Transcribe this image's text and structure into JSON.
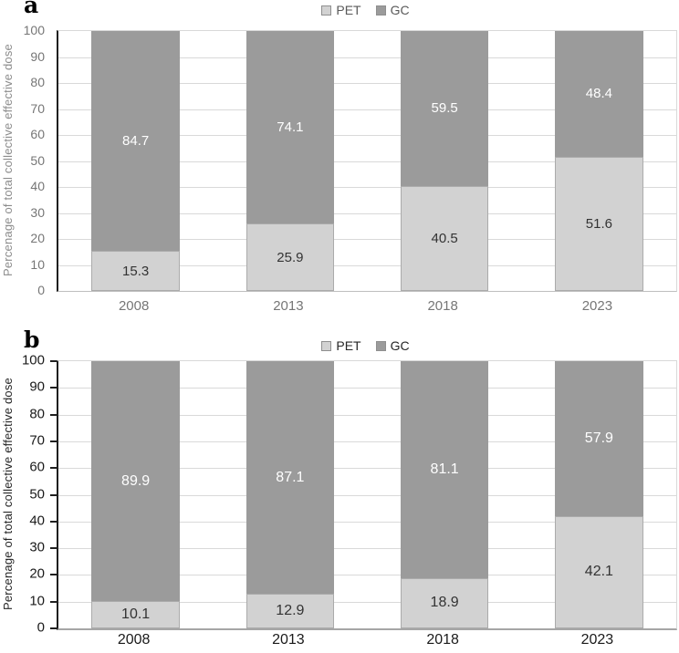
{
  "figure": {
    "colors": {
      "pet_fill": "#d2d2d2",
      "pet_border": "#ababab",
      "gc_fill": "#9b9b9b",
      "gridline": "#d9d9d9",
      "plot_border": "#d9d9d9",
      "gc_value_text": "#ffffff",
      "pet_value_text": "#333333"
    },
    "panels": [
      {
        "label": "a",
        "ylabel": "Percenage of total collective effective dose",
        "legend": [
          {
            "name": "PET"
          },
          {
            "name": "GC"
          }
        ],
        "style": {
          "tick_color": "#767676",
          "category_color": "#767676",
          "ylabel_color": "#8c8c8c",
          "legend_text_color": "#595959",
          "tick_marks": false
        }
      },
      {
        "label": "b",
        "ylabel": "Percenage of total collective effective dose",
        "legend": [
          {
            "name": "PET"
          },
          {
            "name": "GC"
          }
        ],
        "style": {
          "tick_color": "#1a1a1a",
          "category_color": "#1a1a1a",
          "ylabel_color": "#262626",
          "legend_text_color": "#262626",
          "tick_marks": true
        }
      }
    ]
  },
  "chart_data": [
    {
      "type": "bar",
      "stacked": true,
      "panel": "a",
      "title": "",
      "categories": [
        "2008",
        "2013",
        "2018",
        "2023"
      ],
      "series": [
        {
          "name": "PET",
          "values": [
            15.3,
            25.9,
            40.5,
            51.6
          ]
        },
        {
          "name": "GC",
          "values": [
            84.7,
            74.1,
            59.5,
            48.4
          ]
        }
      ],
      "xlabel": "",
      "ylabel": "Percenage of total collective effective dose",
      "ylim": [
        0,
        100
      ],
      "ytick_step": 10,
      "legend_position": "top",
      "grid": true
    },
    {
      "type": "bar",
      "stacked": true,
      "panel": "b",
      "title": "",
      "categories": [
        "2008",
        "2013",
        "2018",
        "2023"
      ],
      "series": [
        {
          "name": "PET",
          "values": [
            10.1,
            12.9,
            18.9,
            42.1
          ]
        },
        {
          "name": "GC",
          "values": [
            89.9,
            87.1,
            81.1,
            57.9
          ]
        }
      ],
      "xlabel": "",
      "ylabel": "Percenage of total collective effective dose",
      "ylim": [
        0,
        100
      ],
      "ytick_step": 10,
      "legend_position": "top",
      "grid": true
    }
  ]
}
